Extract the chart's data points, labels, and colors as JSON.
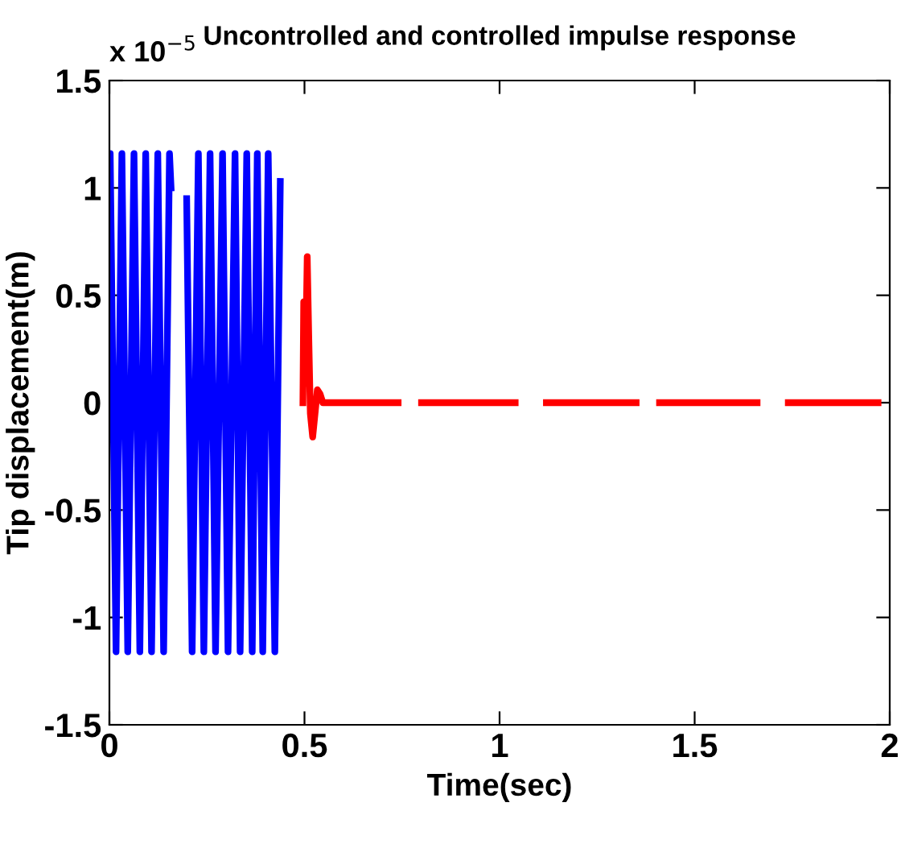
{
  "chart_data": {
    "type": "line",
    "title": "Uncontrolled and controlled impulse response",
    "xlabel": "Time(sec)",
    "ylabel": "Tip displacement(m)",
    "annotations": [
      "x 10$^{−5}$"
    ],
    "xlim": [
      0,
      2
    ],
    "ylim": [
      -1.5,
      1.5
    ],
    "xticks": [
      0,
      0.5,
      1,
      1.5,
      2
    ],
    "yticks": [
      -1.5,
      -1,
      -0.5,
      0,
      0.5,
      1,
      1.5
    ],
    "grid": false,
    "legend": false,
    "series": [
      {
        "color": "#0000ff",
        "x": [
          0,
          0.002,
          0.017,
          0.032,
          0.047,
          0.063,
          0.078,
          0.093,
          0.108,
          0.124,
          0.139,
          0.154,
          0.158,
          0.175,
          0.198,
          0.212,
          0.228,
          0.242,
          0.258,
          0.272,
          0.29,
          0.304,
          0.322,
          0.335,
          0.352,
          0.366,
          0.379,
          0.393,
          0.407,
          0.424,
          0.438
        ],
        "values": [
          0,
          1.16,
          -1.16,
          1.16,
          -1.16,
          1.16,
          -1.16,
          1.16,
          -1.16,
          1.16,
          -1.16,
          1.16,
          1.0,
          null,
          0.95,
          -1.16,
          1.16,
          -1.16,
          1.16,
          -1.16,
          1.16,
          -1.16,
          1.16,
          -1.16,
          1.16,
          -1.16,
          1.16,
          -1.16,
          1.16,
          -1.16,
          1.03
        ]
      },
      {
        "color": "#ff0000",
        "x": [
          0.496,
          0.498,
          0.502,
          0.507,
          0.511,
          0.515,
          0.521,
          0.527,
          0.533,
          0.54,
          0.547,
          0.555,
          0.74,
          0.77,
          0.8,
          1.04,
          1.08,
          1.12,
          1.35,
          1.38,
          1.41,
          1.66,
          1.7,
          1.74,
          1.97
        ],
        "values": [
          0,
          0.47,
          0.1,
          0.68,
          0.3,
          -0.05,
          -0.16,
          -0.05,
          0.06,
          0.04,
          0,
          0,
          0,
          null,
          0,
          0,
          null,
          0,
          0,
          null,
          0,
          0,
          null,
          0,
          0
        ]
      }
    ]
  }
}
